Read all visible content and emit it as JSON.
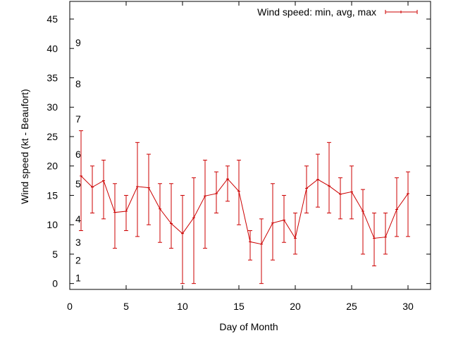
{
  "chart_data": {
    "type": "line",
    "ylabel": "Wind speed (kt - Beaufort)",
    "xlabel": "Day of Month",
    "xlim": [
      0,
      32
    ],
    "ylim": [
      -1,
      48
    ],
    "x_ticks": [
      0,
      5,
      10,
      15,
      20,
      25,
      30
    ],
    "y_ticks": [
      0,
      5,
      10,
      15,
      20,
      25,
      30,
      35,
      40,
      45
    ],
    "grid": false,
    "legend_position": "top-right",
    "series": [
      {
        "name": "Wind speed: min, avg, max",
        "color": "#cc0000",
        "x": [
          1,
          2,
          3,
          4,
          5,
          6,
          7,
          8,
          9,
          10,
          11,
          12,
          13,
          14,
          15,
          16,
          17,
          18,
          19,
          20,
          21,
          22,
          23,
          24,
          25,
          26,
          27,
          28,
          29,
          30
        ],
        "avg": [
          18.3,
          16.4,
          17.5,
          12.1,
          12.3,
          16.5,
          16.3,
          12.7,
          10.2,
          8.5,
          11.2,
          14.9,
          15.3,
          17.8,
          15.7,
          7.1,
          6.7,
          10.3,
          10.8,
          7.7,
          16.2,
          17.7,
          16.6,
          15.2,
          15.6,
          12.3,
          7.7,
          7.9,
          12.6,
          15.3
        ],
        "min": [
          9,
          12,
          11,
          6,
          9,
          8,
          10,
          7,
          6,
          0,
          0,
          6,
          12,
          14,
          10,
          4,
          0,
          4,
          7,
          5,
          12,
          13,
          12,
          11,
          11,
          5,
          3,
          5,
          8,
          8
        ],
        "max": [
          26,
          20,
          21,
          17,
          15,
          24,
          22,
          17,
          17,
          15,
          18,
          21,
          19,
          20,
          21,
          9,
          11,
          17,
          15,
          12,
          20,
          22,
          24,
          18,
          20,
          16,
          12,
          12,
          18,
          19
        ]
      }
    ],
    "beaufort_labels": [
      {
        "label": "1",
        "y": 1
      },
      {
        "label": "2",
        "y": 4
      },
      {
        "label": "3",
        "y": 7
      },
      {
        "label": "4",
        "y": 11
      },
      {
        "label": "5",
        "y": 17
      },
      {
        "label": "6",
        "y": 22
      },
      {
        "label": "7",
        "y": 28
      },
      {
        "label": "8",
        "y": 34
      },
      {
        "label": "9",
        "y": 41
      }
    ]
  }
}
